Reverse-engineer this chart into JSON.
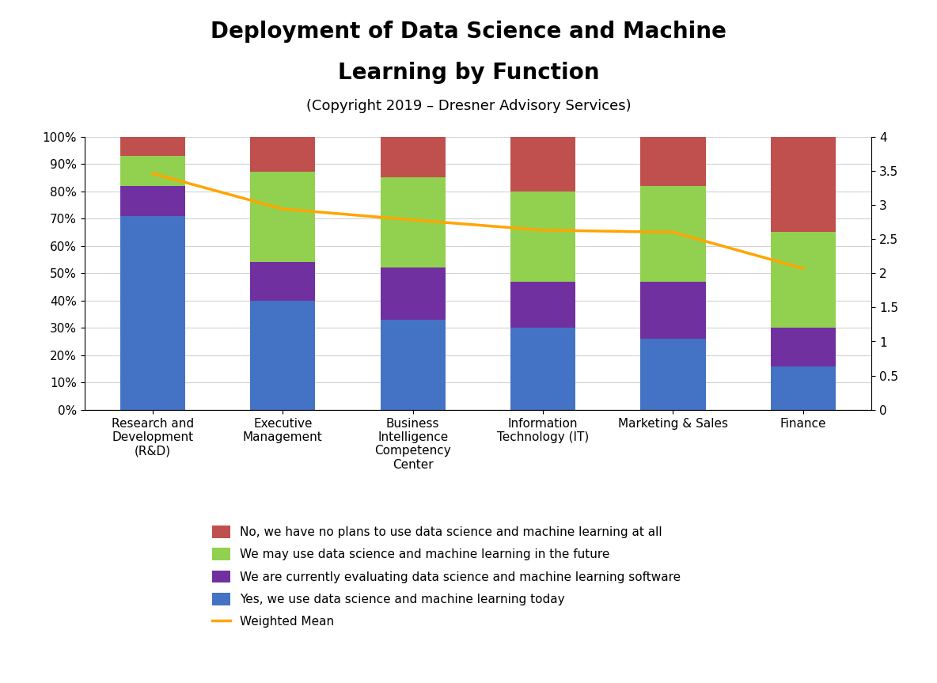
{
  "title_line1": "Deployment of Data Science and Machine",
  "title_line2": "Learning by Function",
  "subtitle": "(Copyright 2019 – Dresner Advisory Services)",
  "categories": [
    "Research and\nDevelopment\n(R&D)",
    "Executive\nManagement",
    "Business\nIntelligence\nCompetency\nCenter",
    "Information\nTechnology (IT)",
    "Marketing & Sales",
    "Finance"
  ],
  "bar_data": {
    "yes_today": [
      0.71,
      0.4,
      0.33,
      0.3,
      0.26,
      0.16
    ],
    "evaluating": [
      0.11,
      0.14,
      0.19,
      0.17,
      0.21,
      0.14
    ],
    "future": [
      0.11,
      0.33,
      0.33,
      0.33,
      0.35,
      0.35
    ],
    "no_plans": [
      0.07,
      0.13,
      0.15,
      0.2,
      0.18,
      0.35
    ]
  },
  "weighted_mean": [
    3.46,
    2.94,
    2.78,
    2.63,
    2.6,
    2.07
  ],
  "colors": {
    "yes_today": "#4472C4",
    "evaluating": "#7030A0",
    "future": "#92D050",
    "no_plans": "#C0504D"
  },
  "line_color": "#FFA500",
  "legend_labels": [
    "No, we have no plans to use data science and machine learning at all",
    "We may use data science and machine learning in the future",
    "We are currently evaluating data science and machine learning software",
    "Yes, we use data science and machine learning today",
    "Weighted Mean"
  ],
  "background_color": "#FFFFFF"
}
